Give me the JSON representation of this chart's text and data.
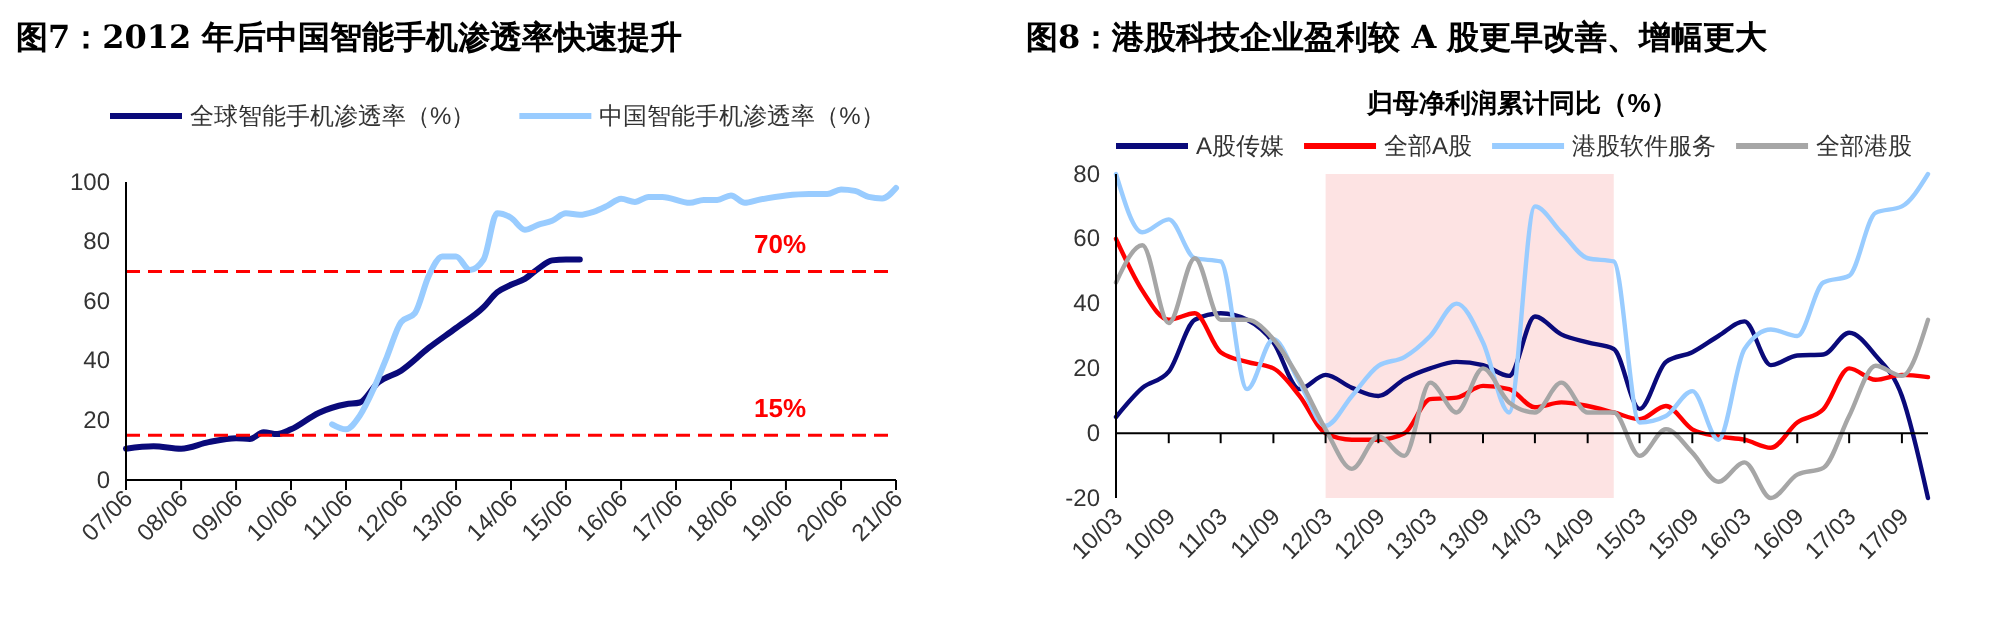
{
  "chart_data": [
    {
      "type": "line",
      "title": "图7：2012 年后中国智能手机渗透率快速提升",
      "legend": "top",
      "xlim": [
        "2007-06",
        "2021-06"
      ],
      "xticks": [
        {
          "value": "2007-06",
          "label": "07/06"
        },
        {
          "value": "2008-06",
          "label": "08/06"
        },
        {
          "value": "2009-06",
          "label": "09/06"
        },
        {
          "value": "2010-06",
          "label": "10/06"
        },
        {
          "value": "2011-06",
          "label": "11/06"
        },
        {
          "value": "2012-06",
          "label": "12/06"
        },
        {
          "value": "2013-06",
          "label": "13/06"
        },
        {
          "value": "2014-06",
          "label": "14/06"
        },
        {
          "value": "2015-06",
          "label": "15/06"
        },
        {
          "value": "2016-06",
          "label": "16/06"
        },
        {
          "value": "2017-06",
          "label": "17/06"
        },
        {
          "value": "2018-06",
          "label": "18/06"
        },
        {
          "value": "2019-06",
          "label": "19/06"
        },
        {
          "value": "2020-06",
          "label": "20/06"
        },
        {
          "value": "2021-06",
          "label": "21/06"
        }
      ],
      "ylim": [
        0,
        100
      ],
      "yticks": [
        0,
        20,
        40,
        60,
        80,
        100
      ],
      "ref_lines": [
        {
          "axis": "y",
          "value": 70,
          "label": "70%",
          "color": "#ff0000",
          "line_style": "dashed"
        },
        {
          "axis": "y",
          "value": 15,
          "label": "15%",
          "color": "#ff0000",
          "line_style": "dashed"
        }
      ],
      "series": [
        {
          "name": "全球智能手机渗透率（%）",
          "color": "#0a0a7a",
          "x": [
            "2007-06",
            "2007-12",
            "2008-06",
            "2008-12",
            "2009-06",
            "2009-09",
            "2009-12",
            "2010-03",
            "2010-06",
            "2010-12",
            "2011-06",
            "2011-09",
            "2012-01",
            "2012-06",
            "2012-12",
            "2013-06",
            "2013-12",
            "2014-03",
            "2014-06",
            "2014-09",
            "2014-12",
            "2015-03",
            "2015-06",
            "2015-09"
          ],
          "values": [
            10.5,
            11.3,
            10.5,
            12.7,
            14,
            13.8,
            16,
            15.4,
            17,
            22.5,
            25.4,
            26,
            32.7,
            36.7,
            44.3,
            51,
            58,
            63,
            65.5,
            67.5,
            71,
            73.7,
            74,
            74
          ]
        },
        {
          "name": "中国智能手机渗透率（%）",
          "color": "#99ccff",
          "x": [
            "2011-03",
            "2011-06",
            "2011-09",
            "2011-12",
            "2012-03",
            "2012-06",
            "2012-09",
            "2012-12",
            "2013-03",
            "2013-06",
            "2013-09",
            "2013-12",
            "2014-03",
            "2014-06",
            "2014-09",
            "2014-12",
            "2015-03",
            "2015-06",
            "2015-09",
            "2015-12",
            "2016-03",
            "2016-06",
            "2016-09",
            "2016-12",
            "2017-03",
            "2017-09",
            "2017-12",
            "2018-03",
            "2018-06",
            "2018-09",
            "2018-12",
            "2019-06",
            "2019-11",
            "2020-03",
            "2020-06",
            "2020-09",
            "2020-12",
            "2021-03",
            "2021-06"
          ],
          "values": [
            18.7,
            17,
            21.6,
            30.5,
            41.6,
            53,
            56,
            68.4,
            75,
            75,
            70.5,
            74,
            89.5,
            88,
            84,
            85.7,
            87,
            89.5,
            89,
            90,
            92,
            94.4,
            93.3,
            95,
            95,
            93,
            94,
            94,
            95.5,
            93,
            94,
            95.5,
            96,
            96,
            97.5,
            97,
            95,
            94.5,
            98
          ]
        }
      ]
    },
    {
      "type": "line",
      "title": "图8：港股科技企业盈利较 A 股更早改善、增幅更大",
      "subtitle": "归母净利润累计同比（%）",
      "legend": "top",
      "x": [
        "2010-03",
        "2010-06",
        "2010-09",
        "2010-12",
        "2011-03",
        "2011-06",
        "2011-09",
        "2011-12",
        "2012-03",
        "2012-06",
        "2012-09",
        "2012-12",
        "2013-03",
        "2013-06",
        "2013-09",
        "2013-12",
        "2014-03",
        "2014-06",
        "2014-09",
        "2014-12",
        "2015-03",
        "2015-06",
        "2015-09",
        "2015-12",
        "2016-03",
        "2016-06",
        "2016-09",
        "2016-12",
        "2017-03",
        "2017-06",
        "2017-09",
        "2017-12"
      ],
      "xlim": [
        "2010-03",
        "2017-12"
      ],
      "xticks": [
        {
          "value": "2010-03",
          "label": "10/03"
        },
        {
          "value": "2010-09",
          "label": "10/09"
        },
        {
          "value": "2011-03",
          "label": "11/03"
        },
        {
          "value": "2011-09",
          "label": "11/09"
        },
        {
          "value": "2012-03",
          "label": "12/03"
        },
        {
          "value": "2012-09",
          "label": "12/09"
        },
        {
          "value": "2013-03",
          "label": "13/03"
        },
        {
          "value": "2013-09",
          "label": "13/09"
        },
        {
          "value": "2014-03",
          "label": "14/03"
        },
        {
          "value": "2014-09",
          "label": "14/09"
        },
        {
          "value": "2015-03",
          "label": "15/03"
        },
        {
          "value": "2015-09",
          "label": "15/09"
        },
        {
          "value": "2016-03",
          "label": "16/03"
        },
        {
          "value": "2016-09",
          "label": "16/09"
        },
        {
          "value": "2017-03",
          "label": "17/03"
        },
        {
          "value": "2017-09",
          "label": "17/09"
        }
      ],
      "ylim": [
        -20,
        80
      ],
      "yticks": [
        -20,
        0,
        20,
        40,
        60,
        80
      ],
      "bands": [
        {
          "axis": "x",
          "from": "2012-03",
          "to": "2014-12",
          "color": "#fde3e3"
        }
      ],
      "series": [
        {
          "name": "A股传媒",
          "color": "#0a0a7a",
          "values": [
            5,
            14,
            19,
            35,
            37,
            35,
            28,
            13.6,
            18,
            14,
            11.5,
            16.7,
            20,
            22,
            21,
            17.7,
            36,
            30.5,
            28,
            26,
            7.5,
            22,
            25,
            30,
            34.5,
            21,
            24,
            24.3,
            31,
            24,
            11.5,
            -20
          ]
        },
        {
          "name": "全部A股",
          "color": "#ff0000",
          "values": [
            60,
            44,
            35,
            37,
            25,
            22,
            20,
            11.5,
            0,
            -2,
            -2,
            0,
            10.5,
            11,
            14.6,
            13.6,
            8,
            9.5,
            8.4,
            6.4,
            4.3,
            8.4,
            1.2,
            -1,
            -2,
            -4.5,
            3.3,
            7.4,
            20,
            16.5,
            18,
            17.3
          ]
        },
        {
          "name": "港股软件服务",
          "color": "#99ccff",
          "values": [
            80,
            62,
            66,
            54,
            53,
            13.6,
            29,
            15.6,
            2.3,
            11.5,
            20.8,
            23.5,
            30,
            40,
            28,
            6.4,
            70,
            62,
            54,
            53,
            3.3,
            5.3,
            13,
            -2,
            26,
            32,
            30,
            46.5,
            48.6,
            68,
            70,
            80
          ]
        },
        {
          "name": "全部港股",
          "color": "#a6a6a6",
          "values": [
            46.5,
            58,
            34,
            54,
            35,
            35,
            29,
            16.7,
            1.2,
            -11,
            -1,
            -7,
            15.6,
            6.4,
            20,
            9.5,
            6.4,
            15.6,
            6.4,
            6.4,
            -7,
            1.2,
            -6,
            -15,
            -9,
            -20,
            -12.8,
            -10.7,
            5.3,
            20.8,
            17.7,
            35
          ]
        }
      ]
    }
  ]
}
